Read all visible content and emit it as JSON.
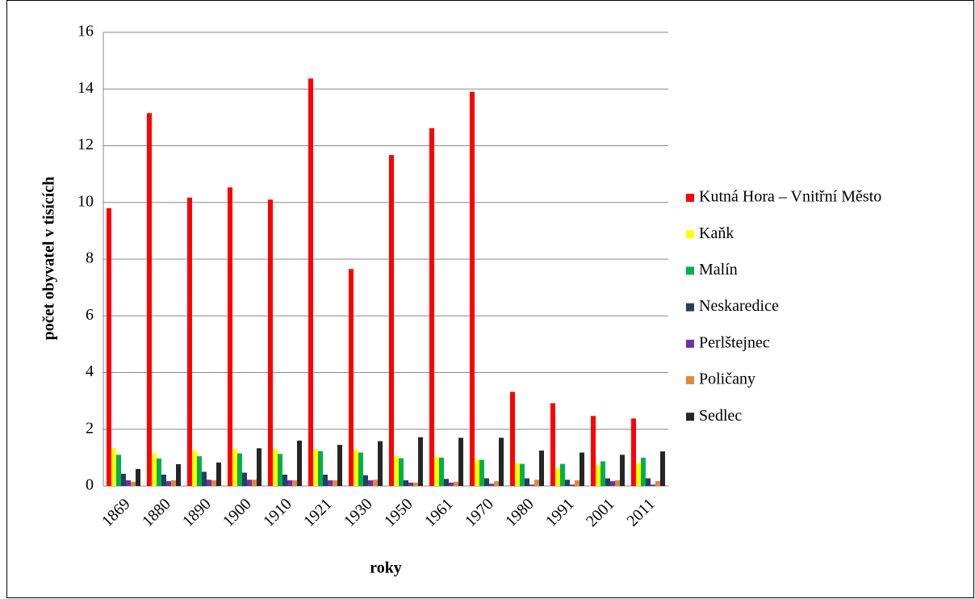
{
  "chart_data": {
    "type": "bar",
    "y_label": "počet obyvatel v tisících",
    "x_label": "roky",
    "categories": [
      "1869",
      "1880",
      "1890",
      "1900",
      "1910",
      "1921",
      "1930",
      "1950",
      "1961",
      "1970",
      "1980",
      "1991",
      "2001",
      "2011"
    ],
    "series": [
      {
        "name": "Kutná Hora – Vnitřní Město",
        "color": "#ff0000",
        "values": [
          9.8,
          13.15,
          10.17,
          10.53,
          10.1,
          14.37,
          7.65,
          11.67,
          12.62,
          13.9,
          3.32,
          2.92,
          2.47,
          2.38
        ]
      },
      {
        "name": "Kaňk",
        "color": "#ffff00",
        "values": [
          1.33,
          1.15,
          1.25,
          1.3,
          1.3,
          1.3,
          1.27,
          1.05,
          1.02,
          0.93,
          0.8,
          0.63,
          0.73,
          0.8
        ]
      },
      {
        "name": "Malín",
        "color": "#00b050",
        "values": [
          1.1,
          0.97,
          1.05,
          1.15,
          1.13,
          1.23,
          1.18,
          0.98,
          1.0,
          0.92,
          0.78,
          0.78,
          0.87,
          1.0
        ]
      },
      {
        "name": "Neskaredice",
        "color": "#243f60",
        "values": [
          0.43,
          0.4,
          0.5,
          0.47,
          0.4,
          0.4,
          0.38,
          0.2,
          0.25,
          0.27,
          0.27,
          0.22,
          0.27,
          0.27
        ]
      },
      {
        "name": "Perlštejnec",
        "color": "#7030a0",
        "values": [
          0.2,
          0.17,
          0.22,
          0.22,
          0.2,
          0.2,
          0.2,
          0.12,
          0.12,
          0.08,
          0.05,
          0.05,
          0.17,
          0.05
        ]
      },
      {
        "name": "Poličany",
        "color": "#e0883c",
        "values": [
          0.15,
          0.2,
          0.2,
          0.22,
          0.2,
          0.2,
          0.22,
          0.12,
          0.15,
          0.17,
          0.22,
          0.2,
          0.2,
          0.17
        ]
      },
      {
        "name": "Sedlec",
        "color": "#262626",
        "values": [
          0.6,
          0.77,
          0.83,
          1.33,
          1.6,
          1.45,
          1.58,
          1.72,
          1.7,
          1.7,
          1.25,
          1.18,
          1.1,
          1.22
        ]
      }
    ],
    "ylim": [
      0,
      16
    ],
    "yticks": [
      0,
      2,
      4,
      6,
      8,
      10,
      12,
      14,
      16
    ],
    "grid": true,
    "legend": "right"
  }
}
